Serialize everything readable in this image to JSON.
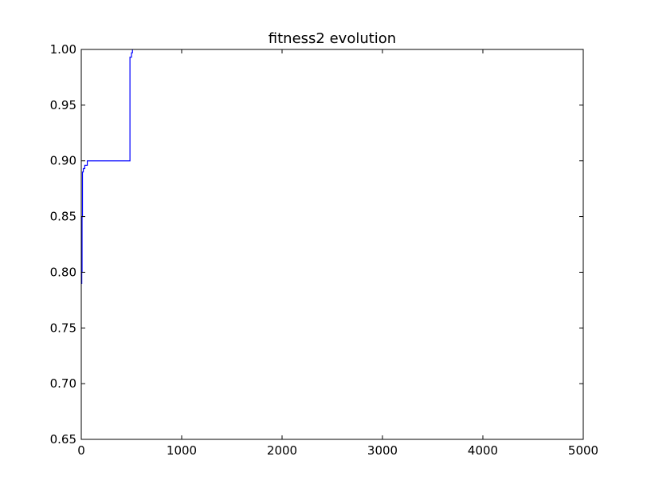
{
  "chart_data": {
    "type": "line",
    "title": "fitness2 evolution",
    "xlabel": "",
    "ylabel": "",
    "xlim": [
      0,
      5000
    ],
    "ylim": [
      0.65,
      1.0
    ],
    "x_ticks": [
      0,
      1000,
      2000,
      3000,
      4000,
      5000
    ],
    "x_tick_labels": [
      "0",
      "1000",
      "2000",
      "3000",
      "4000",
      "5000"
    ],
    "y_ticks": [
      0.65,
      0.7,
      0.75,
      0.8,
      0.85,
      0.9,
      0.95,
      1.0
    ],
    "y_tick_labels": [
      "0.65",
      "0.70",
      "0.75",
      "0.80",
      "0.85",
      "0.90",
      "0.95",
      "1.00"
    ],
    "grid": false,
    "series": [
      {
        "color": "#0000ff",
        "step": true,
        "x": [
          0,
          5,
          8,
          12,
          20,
          35,
          60,
          480,
          485,
          500,
          510
        ],
        "y": [
          0.79,
          0.8,
          0.85,
          0.89,
          0.893,
          0.896,
          0.9,
          0.9,
          0.993,
          0.997,
          1.0
        ]
      }
    ]
  }
}
